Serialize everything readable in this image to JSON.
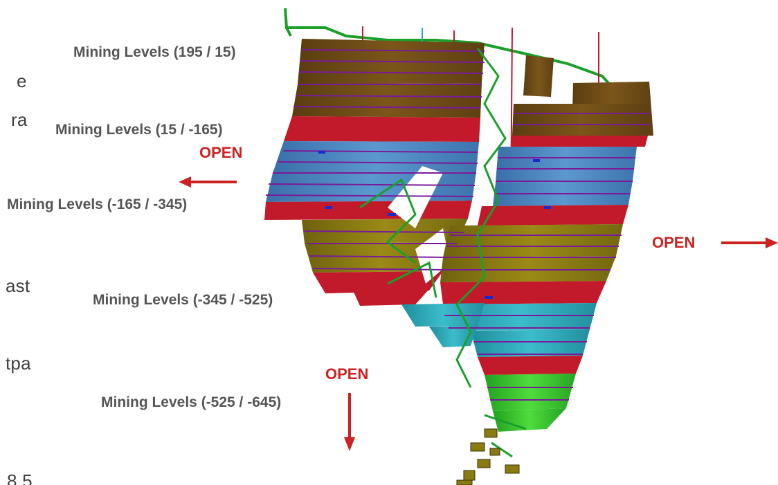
{
  "left_text_fragments": [
    "e",
    "ra",
    "ast",
    "tpa",
    "8.5"
  ],
  "level_labels": [
    "Mining Levels (195 / 15)",
    "Mining Levels (15 / -165)",
    "Mining Levels (-165 / -345)",
    "Mining Levels (-345 / -525)",
    "Mining Levels (-525 / -645)"
  ],
  "open_labels": {
    "west": "OPEN",
    "east": "OPEN",
    "down": "OPEN"
  },
  "colors": {
    "open_arrow": "#cc2222",
    "level_label": "#555555",
    "band_brown": "#6b4a14",
    "band_red": "#c21a2a",
    "band_blue": "#4a86c0",
    "band_olive": "#8a7a12",
    "band_cyan": "#2ba8b8",
    "band_green": "#2fc12a",
    "level_line": "#7a1a9a",
    "drift": "#1aa02a"
  }
}
